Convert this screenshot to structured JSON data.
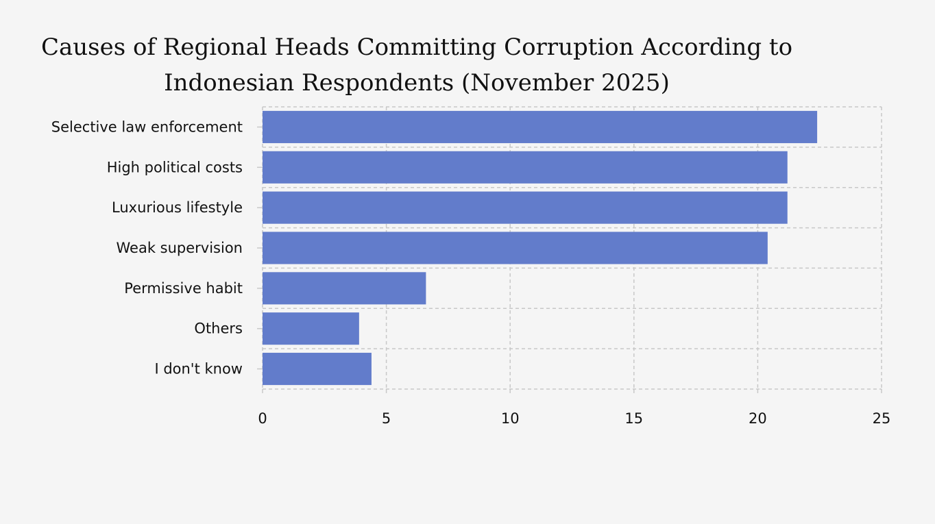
{
  "chart_data": {
    "type": "bar",
    "orientation": "horizontal",
    "title": "Causes of Regional Heads Committing Corruption According to Indonesian Respondents (November 2025)",
    "title_lines": [
      "Causes of Regional Heads Committing Corruption According to",
      "Indonesian Respondents (November 2025)"
    ],
    "categories": [
      "Selective law enforcement",
      "High political costs",
      "Luxurious lifestyle",
      "Weak supervision",
      "Permissive habit",
      "Others",
      "I don't know"
    ],
    "values": [
      22.4,
      21.2,
      21.2,
      20.4,
      6.6,
      3.9,
      4.4
    ],
    "xlim": [
      0,
      25
    ],
    "xticks": [
      0,
      5,
      10,
      15,
      20,
      25
    ],
    "xlabel": "",
    "ylabel": "",
    "grid": true,
    "colors": {
      "bar": "#627ccb",
      "background": "#f5f5f5"
    }
  }
}
